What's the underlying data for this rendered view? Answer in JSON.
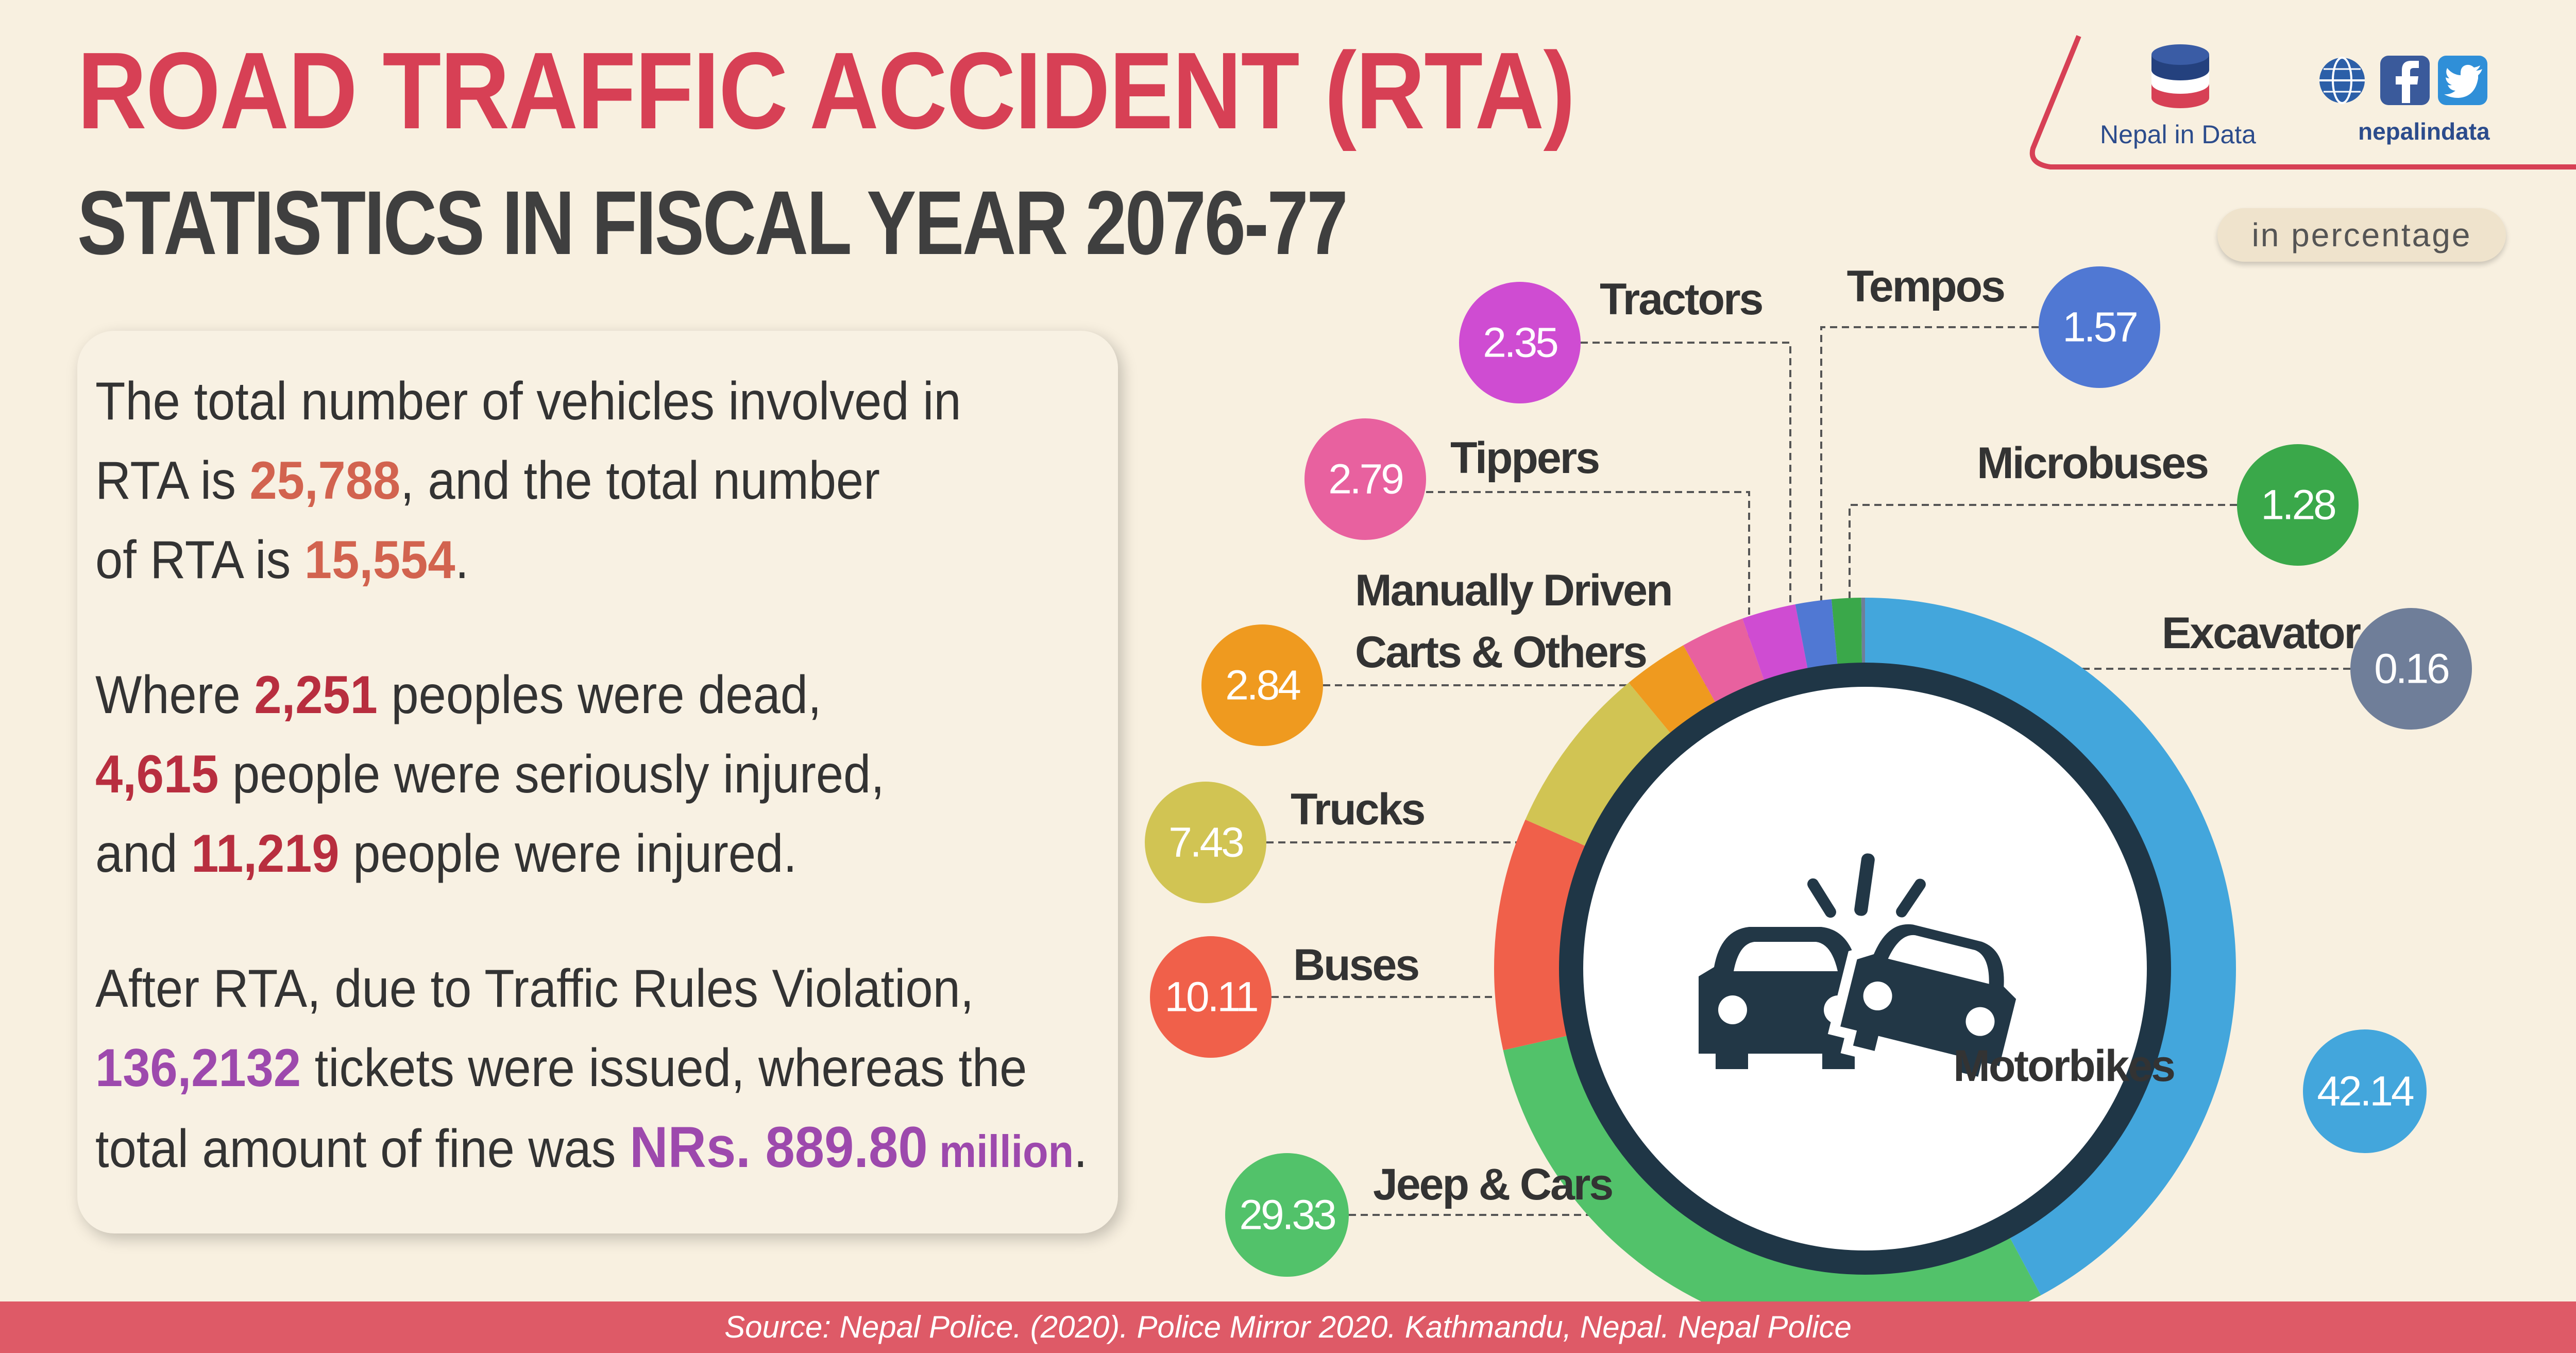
{
  "header": {
    "title": "ROAD TRAFFIC ACCIDENT (RTA)",
    "subtitle": "STATISTICS IN FISCAL YEAR 2076-77"
  },
  "brand": {
    "name": "Nepal in Data",
    "handle": "nepalindata",
    "icons": [
      "database-icon",
      "globe-icon",
      "facebook-icon",
      "twitter-icon"
    ]
  },
  "unit_label": "in percentage",
  "summary": {
    "p1": {
      "a": "The total number of vehicles involved in",
      "b": "RTA is ",
      "vehicles": "25,788",
      "c": ", and the total number",
      "d": "of RTA is ",
      "accidents": "15,554",
      "e": "."
    },
    "p2": {
      "a": "Where ",
      "dead": "2,251",
      "b": " peoples were dead,",
      "serious": "4,615",
      "c": " people were seriously injured,",
      "d": "and ",
      "injured": "11,219",
      "e": " people were injured."
    },
    "p3": {
      "a": "After RTA, due to Traffic Rules Violation,",
      "tickets": "136,2132",
      "b": " tickets were issued, whereas the",
      "c": "total amount of fine was ",
      "fine": "NRs. 889.80",
      "million": " million",
      "d": "."
    }
  },
  "chart_data": {
    "type": "pie",
    "variant": "donut",
    "unit": "in percentage",
    "categories": [
      "Motorbikes",
      "Jeep & Cars",
      "Buses",
      "Trucks",
      "Manually Driven Carts & Others",
      "Tippers",
      "Tractors",
      "Tempos",
      "Microbuses",
      "Excavator"
    ],
    "values": [
      42.14,
      29.33,
      10.11,
      7.43,
      2.84,
      2.79,
      2.35,
      1.57,
      1.28,
      0.16
    ],
    "value_labels": [
      "42.14",
      "29.33",
      "10.11",
      "7.43",
      "2.84",
      "2.79",
      "2.35",
      "1.57",
      "1.28",
      "0.16"
    ],
    "colors": [
      "#43a6dc",
      "#52c26a",
      "#f0604a",
      "#d1c453",
      "#ef9a1f",
      "#e8619f",
      "#cf4cd2",
      "#5078d3",
      "#3aa84a",
      "#6f7e99"
    ],
    "legend": "callout-bubbles",
    "center_icon": "car-crash-icon"
  },
  "footer": {
    "source": "Source: Nepal Police. (2020). Police Mirror 2020. Kathmandu, Nepal. Nepal Police"
  }
}
